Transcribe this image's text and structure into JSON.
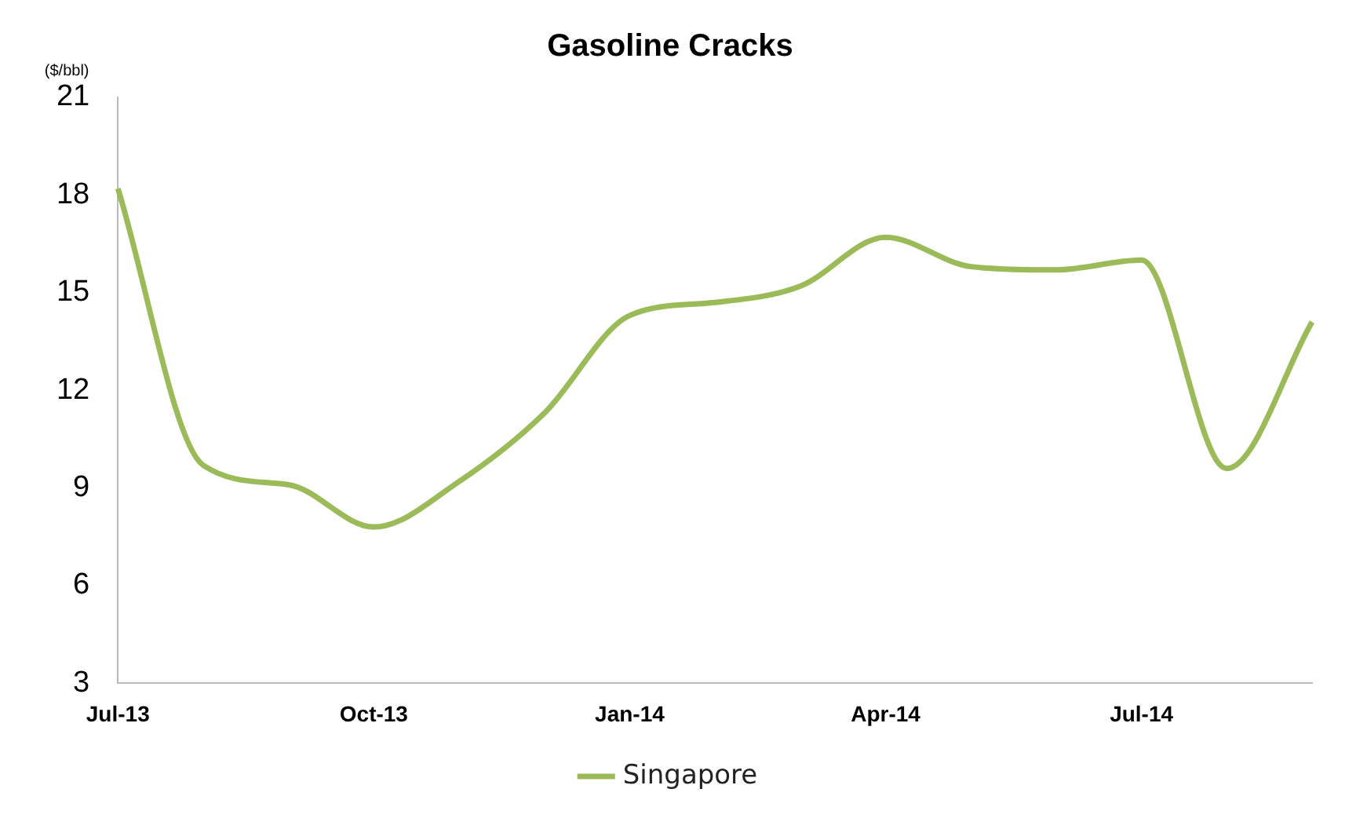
{
  "chart_data": {
    "type": "line",
    "title": "Gasoline Cracks",
    "ylabel": "($/bbl)",
    "categories": [
      "Jul-13",
      null,
      null,
      "Oct-13",
      null,
      null,
      "Jan-14",
      null,
      null,
      "Apr-14",
      null,
      null,
      "Jul-14",
      null,
      null
    ],
    "series": [
      {
        "name": "Singapore",
        "color": "#9bbb59",
        "values": [
          18.2,
          9.7,
          9.1,
          7.8,
          9.2,
          11.3,
          14.3,
          14.7,
          15.2,
          16.7,
          15.8,
          15.7,
          16.0,
          9.6,
          14.1
        ]
      }
    ],
    "ylim": [
      3,
      21
    ],
    "yticks": [
      3,
      6,
      9,
      12,
      15,
      18,
      21
    ],
    "grid": false,
    "legend": "bottom",
    "marker": "none",
    "line_style": "solid"
  }
}
